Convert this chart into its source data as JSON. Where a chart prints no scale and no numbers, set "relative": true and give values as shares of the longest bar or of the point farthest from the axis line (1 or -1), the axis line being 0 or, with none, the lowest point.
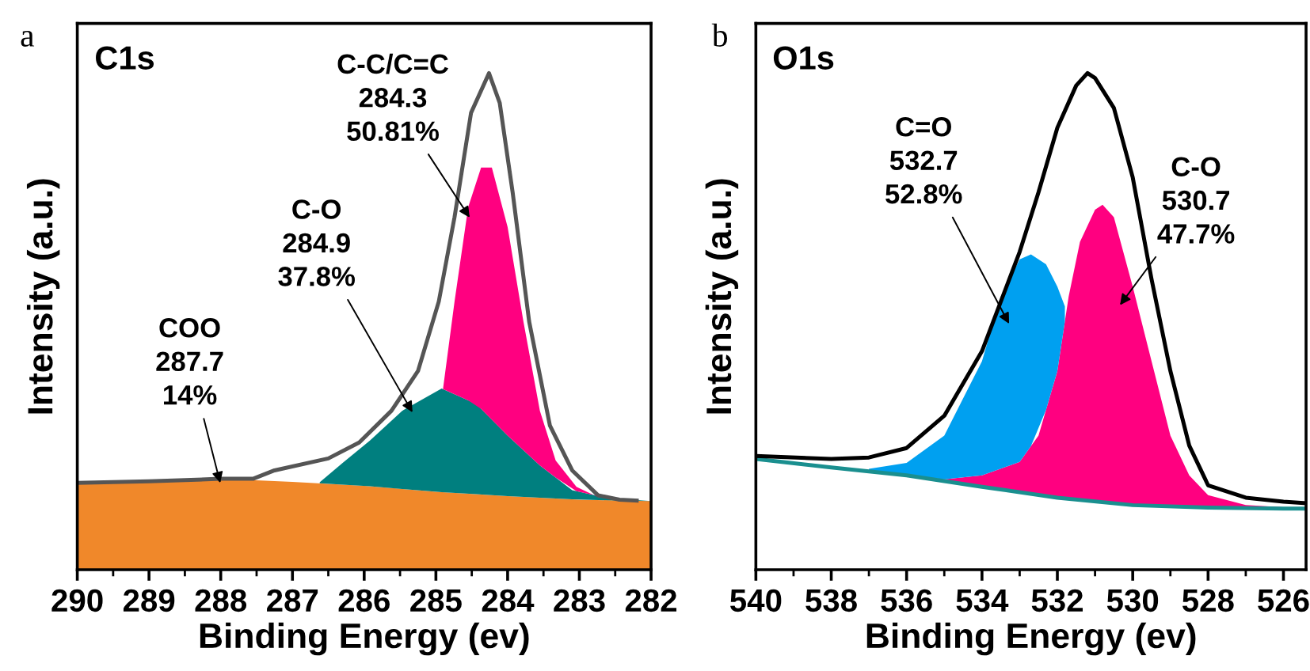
{
  "chart_data": [
    {
      "type": "area",
      "title": "C1s",
      "xlabel": "Binding Energy (ev)",
      "ylabel": "Intensity (a.u.)",
      "relative": true,
      "tick_labels": "x",
      "grid": false,
      "xlim": [
        290,
        282
      ],
      "xticks": [
        290,
        289,
        288,
        287,
        286,
        285,
        284,
        283,
        282
      ],
      "annotations": [
        "a",
        "COO\n287.7\n14%",
        "C-O\n284.9\n37.8%",
        "C-C/C=C\n284.3\n50.81%"
      ],
      "series": [
        {
          "color": "#f0882a",
          "x": [
            290,
            289,
            288,
            287,
            286,
            285,
            284,
            283,
            282
          ],
          "values": [
            0.175,
            0.178,
            0.183,
            0.177,
            0.169,
            0.157,
            0.148,
            0.141,
            0.138
          ]
        },
        {
          "color": "#007f7f",
          "x": [
            286.62,
            286.3,
            285.92,
            285.47,
            284.92,
            284.44,
            284.0,
            283.55,
            283.1,
            282.6,
            282.0
          ],
          "values": [
            0.176,
            0.215,
            0.26,
            0.32,
            0.365,
            0.334,
            0.27,
            0.21,
            0.16,
            0.144,
            0.138
          ]
        },
        {
          "color": "#ff0080",
          "x": [
            284.9,
            284.74,
            284.55,
            284.37,
            284.22,
            284.0,
            283.78,
            283.55,
            283.33,
            283.04,
            282.74,
            282.4
          ],
          "values": [
            0.365,
            0.54,
            0.73,
            0.81,
            0.81,
            0.69,
            0.5,
            0.32,
            0.22,
            0.167,
            0.146,
            0.14
          ]
        },
        {
          "type": "line",
          "color": "#555555",
          "x": [
            290,
            289,
            288,
            287.55,
            287.25,
            286.5,
            286.07,
            285.62,
            285.25,
            284.96,
            284.74,
            284.51,
            284.26,
            284.11,
            283.93,
            283.7,
            283.41,
            283.1,
            282.74,
            282.44,
            282.2
          ],
          "values": [
            0.175,
            0.178,
            0.183,
            0.183,
            0.2,
            0.224,
            0.256,
            0.32,
            0.4,
            0.54,
            0.71,
            0.92,
            1.0,
            0.94,
            0.76,
            0.5,
            0.29,
            0.2,
            0.15,
            0.141,
            0.139
          ]
        }
      ]
    },
    {
      "type": "area",
      "title": "O1s",
      "xlabel": "Binding Energy (ev)",
      "ylabel": "Intensity (a.u.)",
      "relative": true,
      "tick_labels": "x",
      "grid": false,
      "xlim": [
        540,
        525.4
      ],
      "xticks": [
        540,
        538,
        536,
        534,
        532,
        530,
        528,
        526
      ],
      "annotations": [
        "b",
        "C=O\n532.7\n52.8%",
        "C-O\n530.7\n47.7%"
      ],
      "series": [
        {
          "type": "line",
          "color": "#1a8f8f",
          "x": [
            540,
            538,
            536,
            534,
            532,
            530,
            528,
            526,
            525.4
          ],
          "values": [
            0.223,
            0.206,
            0.19,
            0.167,
            0.145,
            0.13,
            0.125,
            0.123,
            0.123
          ]
        },
        {
          "color": "#ff0080",
          "x": [
            540,
            537,
            535,
            534,
            533,
            532.5,
            532,
            531.7,
            531.4,
            531,
            530.8,
            530.5,
            530,
            529.5,
            529,
            528.5,
            528,
            527,
            526,
            525.4
          ],
          "values": [
            0.224,
            0.199,
            0.182,
            0.19,
            0.217,
            0.27,
            0.4,
            0.55,
            0.66,
            0.725,
            0.735,
            0.71,
            0.57,
            0.42,
            0.27,
            0.19,
            0.15,
            0.13,
            0.126,
            0.124
          ]
        },
        {
          "color": "#00a0f0",
          "x": [
            537,
            536,
            535,
            534,
            533.5,
            533,
            532.7,
            532.3,
            532,
            531.8
          ],
          "values": [
            0.203,
            0.215,
            0.27,
            0.42,
            0.55,
            0.625,
            0.635,
            0.615,
            0.57,
            0.53
          ]
        },
        {
          "type": "line",
          "color": "#000000",
          "x": [
            540,
            538,
            537,
            536,
            535,
            534,
            533,
            532.5,
            532,
            531.5,
            531.2,
            531,
            530.5,
            530,
            529.5,
            529,
            528.5,
            528,
            527,
            526,
            525.4
          ],
          "values": [
            0.229,
            0.223,
            0.226,
            0.245,
            0.31,
            0.44,
            0.64,
            0.76,
            0.89,
            0.975,
            1.0,
            0.99,
            0.93,
            0.79,
            0.585,
            0.4,
            0.25,
            0.17,
            0.145,
            0.137,
            0.134
          ]
        }
      ]
    }
  ]
}
